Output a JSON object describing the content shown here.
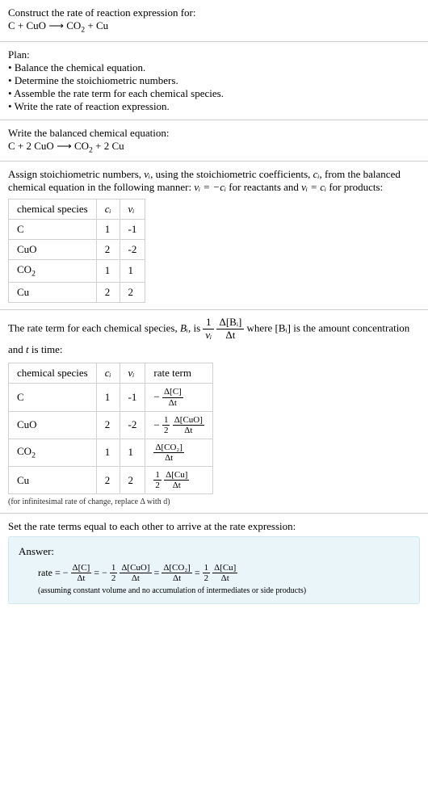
{
  "header": {
    "title": "Construct the rate of reaction expression for:",
    "equation_plain": "C + CuO ⟶ CO₂ + Cu"
  },
  "plan": {
    "label": "Plan:",
    "items": [
      "Balance the chemical equation.",
      "Determine the stoichiometric numbers.",
      "Assemble the rate term for each chemical species.",
      "Write the rate of reaction expression."
    ]
  },
  "balanced": {
    "label": "Write the balanced chemical equation:",
    "equation_plain": "C + 2 CuO ⟶ CO₂ + 2 Cu"
  },
  "stoich": {
    "intro_a": "Assign stoichiometric numbers, ",
    "nu_i": "νᵢ",
    "intro_b": ", using the stoichiometric coefficients, ",
    "c_i": "cᵢ",
    "intro_c": ", from the balanced chemical equation in the following manner: ",
    "rel1": "νᵢ = −cᵢ",
    "intro_d": " for reactants and ",
    "rel2": "νᵢ = cᵢ",
    "intro_e": " for products:",
    "table": {
      "headers": [
        "chemical species",
        "cᵢ",
        "νᵢ"
      ],
      "rows": [
        [
          "C",
          "1",
          "-1"
        ],
        [
          "CuO",
          "2",
          "-2"
        ],
        [
          "CO₂",
          "1",
          "1"
        ],
        [
          "Cu",
          "2",
          "2"
        ]
      ]
    }
  },
  "rateterm": {
    "intro_a": "The rate term for each chemical species, ",
    "B_i": "Bᵢ",
    "intro_b": ", is ",
    "frac1_num": "1",
    "frac1_den": "νᵢ",
    "frac2_num": "Δ[Bᵢ]",
    "frac2_den": "Δt",
    "intro_c": " where ",
    "conc": "[Bᵢ]",
    "intro_d": " is the amount concentration and ",
    "t": "t",
    "intro_e": " is time:",
    "table": {
      "headers": [
        "chemical species",
        "cᵢ",
        "νᵢ",
        "rate term"
      ],
      "rows": [
        {
          "species": "C",
          "c": "1",
          "nu": "-1",
          "neg": "−",
          "coef_num": "",
          "coef_den": "",
          "d_num": "Δ[C]",
          "d_den": "Δt"
        },
        {
          "species": "CuO",
          "c": "2",
          "nu": "-2",
          "neg": "−",
          "coef_num": "1",
          "coef_den": "2",
          "d_num": "Δ[CuO]",
          "d_den": "Δt"
        },
        {
          "species": "CO₂",
          "c": "1",
          "nu": "1",
          "neg": "",
          "coef_num": "",
          "coef_den": "",
          "d_num": "Δ[CO₂]",
          "d_den": "Δt"
        },
        {
          "species": "Cu",
          "c": "2",
          "nu": "2",
          "neg": "",
          "coef_num": "1",
          "coef_den": "2",
          "d_num": "Δ[Cu]",
          "d_den": "Δt"
        }
      ]
    },
    "note": "(for infinitesimal rate of change, replace Δ with d)"
  },
  "final": {
    "label": "Set the rate terms equal to each other to arrive at the rate expression:",
    "answer_label": "Answer:",
    "rate_prefix": "rate = ",
    "terms": [
      {
        "neg": "−",
        "coef_num": "",
        "coef_den": "",
        "d_num": "Δ[C]",
        "d_den": "Δt"
      },
      {
        "neg": "−",
        "coef_num": "1",
        "coef_den": "2",
        "d_num": "Δ[CuO]",
        "d_den": "Δt"
      },
      {
        "neg": "",
        "coef_num": "",
        "coef_den": "",
        "d_num": "Δ[CO₂]",
        "d_den": "Δt"
      },
      {
        "neg": "",
        "coef_num": "1",
        "coef_den": "2",
        "d_num": "Δ[Cu]",
        "d_den": "Δt"
      }
    ],
    "eq": " = ",
    "assume": "(assuming constant volume and no accumulation of intermediates or side products)"
  },
  "colors": {
    "answer_bg": "#e9f5f9",
    "answer_border": "#cfe7ee",
    "table_border": "#d0d0d0",
    "hr": "#ccc"
  }
}
